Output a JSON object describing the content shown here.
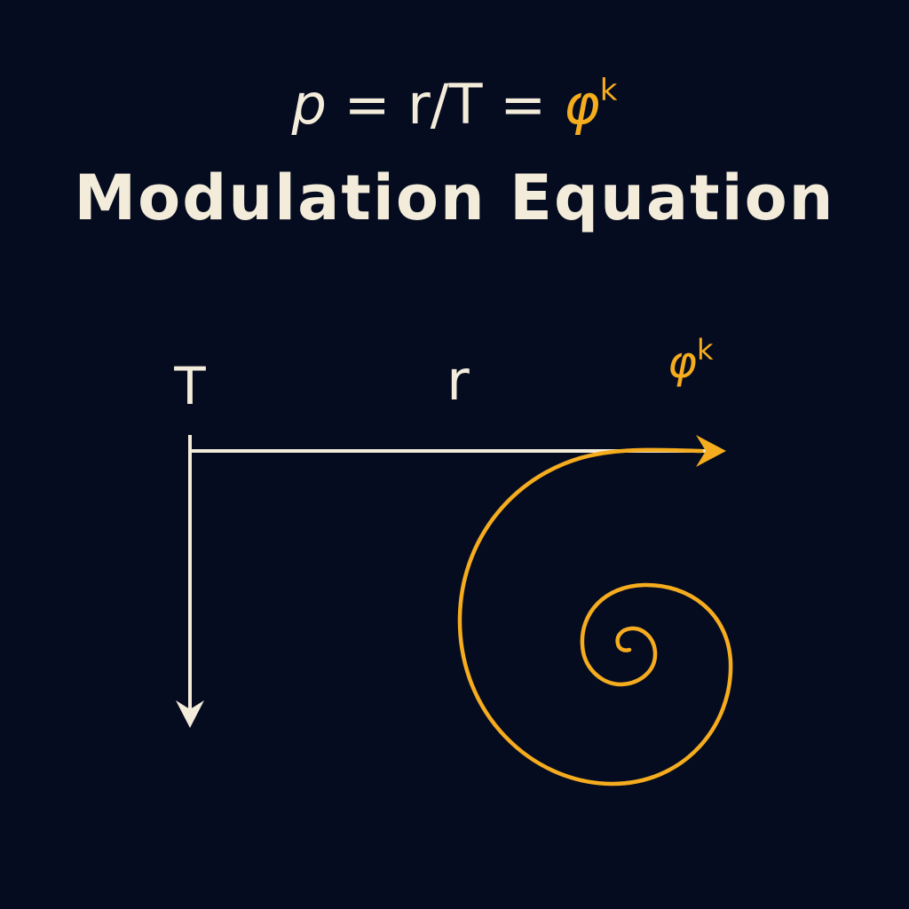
{
  "equation": {
    "lhs": "p",
    "eq1": " = r/T = ",
    "phi": "φ",
    "exp": "k"
  },
  "title": "Modulation Equation",
  "diagram": {
    "label_T": "T",
    "label_r": "r",
    "label_phi": "φ",
    "label_phi_exp": "k",
    "colors": {
      "background": "#060c20",
      "foreground": "#f4ecda",
      "accent": "#f5ac1e"
    }
  }
}
